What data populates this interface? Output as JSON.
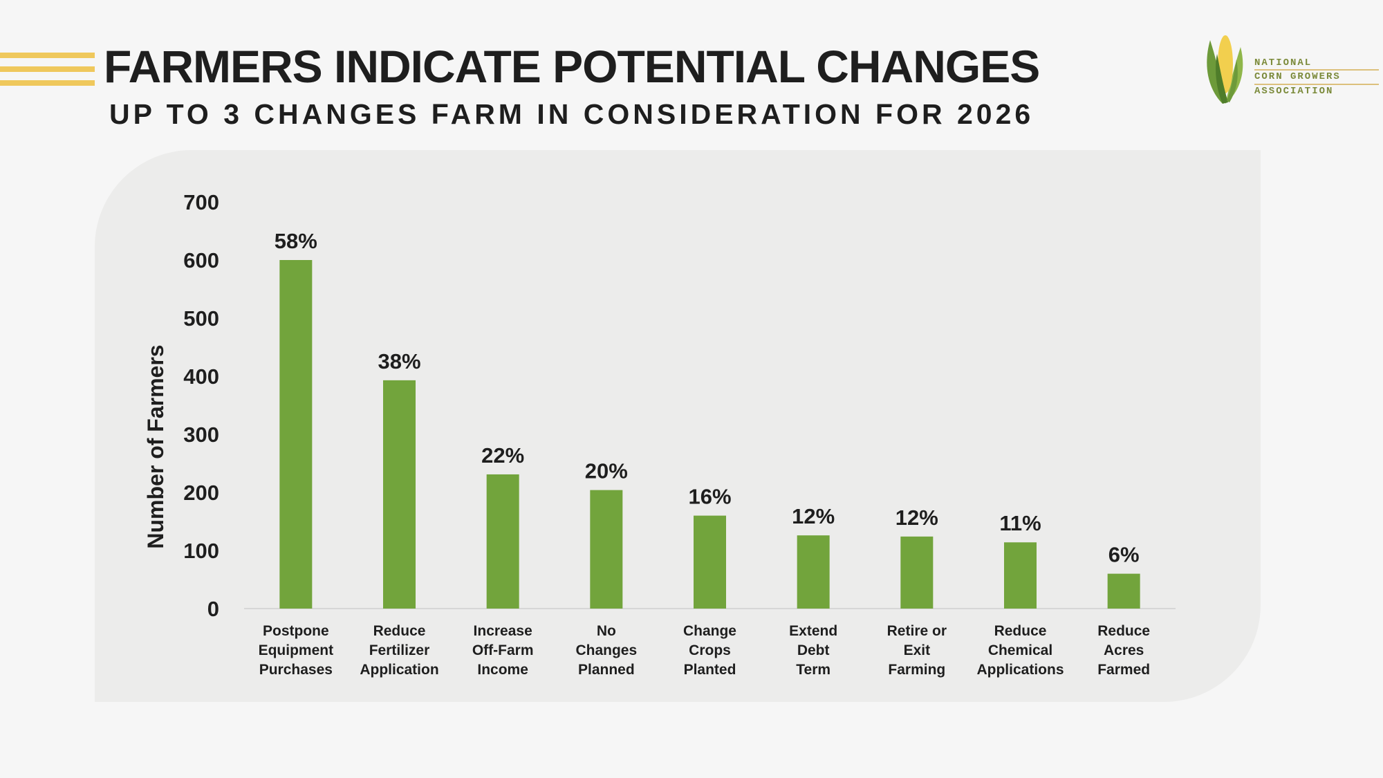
{
  "header": {
    "title": "FARMERS INDICATE POTENTIAL CHANGES",
    "subtitle": "UP TO 3 CHANGES FARM IN CONSIDERATION FOR 2026"
  },
  "logo": {
    "line1": "NATIONAL",
    "line2": "CORN GROWERS",
    "line3": "ASSOCIATION"
  },
  "colors": {
    "bar": "#72a43c",
    "accent": "#efc85c",
    "text": "#1e1e1e",
    "panel": "#ececeb"
  },
  "chart_data": {
    "type": "bar",
    "ylabel": "Number of Farmers",
    "ylim": [
      0,
      700
    ],
    "yticks": [
      0,
      100,
      200,
      300,
      400,
      500,
      600,
      700
    ],
    "grid": false,
    "categories": [
      [
        "Postpone",
        "Equipment",
        "Purchases"
      ],
      [
        "Reduce",
        "Fertilizer",
        "Application"
      ],
      [
        "Increase",
        "Off-Farm",
        "Income"
      ],
      [
        "No",
        "Changes",
        "Planned"
      ],
      [
        "Change",
        "Crops",
        "Planted"
      ],
      [
        "Extend",
        "Debt",
        "Term"
      ],
      [
        "Retire or",
        "Exit",
        "Farming"
      ],
      [
        "Reduce",
        "Chemical",
        "Applications"
      ],
      [
        "Reduce",
        "Acres",
        "Farmed"
      ]
    ],
    "values": [
      600,
      393,
      231,
      204,
      160,
      126,
      124,
      114,
      60
    ],
    "data_labels": [
      "58%",
      "38%",
      "22%",
      "20%",
      "16%",
      "12%",
      "12%",
      "11%",
      "6%"
    ]
  }
}
